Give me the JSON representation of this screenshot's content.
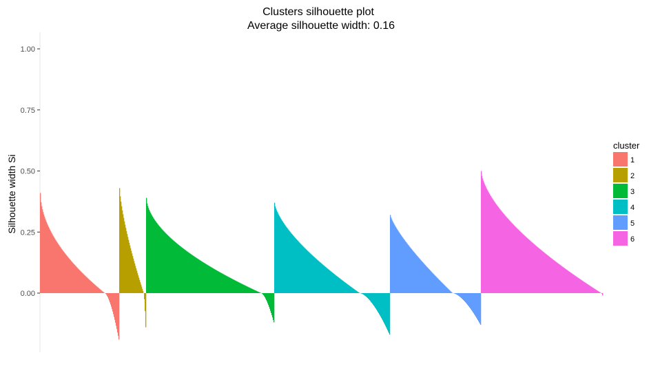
{
  "chart_data": {
    "type": "bar",
    "title": "Clusters silhouette plot",
    "subtitle": "Average silhouette width: 0.16",
    "xlabel": "",
    "ylabel": "Silhouette width Si",
    "ylim": [
      -0.2,
      1.05
    ],
    "yticks": [
      {
        "value": 0.0,
        "label": "0.00"
      },
      {
        "value": 0.25,
        "label": "0.25"
      },
      {
        "value": 0.5,
        "label": "0.50"
      },
      {
        "value": 0.75,
        "label": "0.75"
      },
      {
        "value": 1.0,
        "label": "1.00"
      }
    ],
    "grid": false,
    "legend": {
      "title": "cluster",
      "position": "right"
    },
    "series": [
      {
        "name": "1",
        "color": "#F8766D",
        "count": 115,
        "max": 0.41,
        "min": -0.19,
        "zero_at": 0.82,
        "shape": 1.9
      },
      {
        "name": "2",
        "color": "#B79F00",
        "count": 39,
        "max": 0.43,
        "min": -0.14,
        "zero_at": 0.92,
        "shape": 1.4
      },
      {
        "name": "3",
        "color": "#00BA38",
        "count": 186,
        "max": 0.39,
        "min": -0.12,
        "zero_at": 0.9,
        "shape": 1.8
      },
      {
        "name": "4",
        "color": "#00BFC4",
        "count": 168,
        "max": 0.37,
        "min": -0.17,
        "zero_at": 0.74,
        "shape": 1.5
      },
      {
        "name": "5",
        "color": "#619CFF",
        "count": 132,
        "max": 0.32,
        "min": -0.13,
        "zero_at": 0.69,
        "shape": 1.3
      },
      {
        "name": "6",
        "color": "#F564E3",
        "count": 177,
        "max": 0.5,
        "min": -0.01,
        "zero_at": 0.99,
        "shape": 1.6
      }
    ]
  }
}
